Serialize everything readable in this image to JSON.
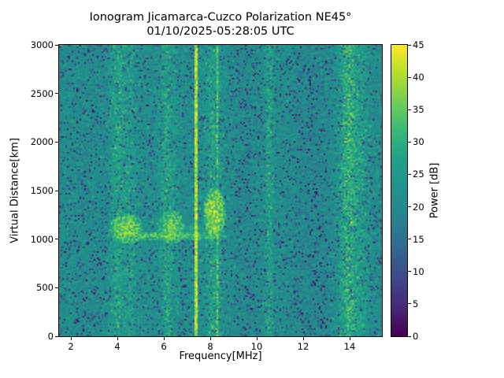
{
  "figure": {
    "background": "#ffffff"
  },
  "chart_data": {
    "type": "heatmap",
    "title": "Ionogram Jicamarca-Cuzco Polarization NE45°",
    "subtitle": "01/10/2025-05:28:05 UTC",
    "xlabel": "Frequency[MHz]",
    "ylabel": "Virtual Distance[km]",
    "xlim": [
      1.49,
      15.39
    ],
    "ylim": [
      0,
      3000
    ],
    "xticks": [
      2,
      4,
      6,
      8,
      10,
      12,
      14
    ],
    "yticks": [
      0,
      500,
      1000,
      1500,
      2000,
      2500,
      3000
    ],
    "grid": false,
    "colorbar": {
      "label": "Power [dB]",
      "min": 0,
      "max": 45,
      "ticks": [
        0,
        5,
        10,
        15,
        20,
        25,
        30,
        35,
        40,
        45
      ],
      "colormap": "viridis"
    },
    "noise": {
      "seed": 1234,
      "base_min": 16.5,
      "base_max": 26.5,
      "dark_speckle_prob": 0.1,
      "dark_min": 2,
      "dark_max": 14,
      "bright_speckle_prob": 0.06,
      "bright_min": 25,
      "bright_max": 31
    },
    "vertical_bands": [
      {
        "c": 4.0,
        "w": 0.3,
        "boost": 6
      },
      {
        "c": 4.55,
        "w": 0.25,
        "boost": 4
      },
      {
        "c": 6.15,
        "w": 0.3,
        "boost": 6
      },
      {
        "c": 8.15,
        "w": 0.35,
        "boost": 6
      },
      {
        "c": 10.55,
        "w": 0.15,
        "boost": 6
      },
      {
        "c": 13.95,
        "w": 0.4,
        "boost": 10
      },
      {
        "c": 14.55,
        "w": 0.25,
        "boost": 4
      },
      {
        "c": 12.4,
        "w": 1.1,
        "boost": -2.5
      },
      {
        "c": 9.5,
        "w": 0.6,
        "boost": -2
      },
      {
        "c": 2.8,
        "w": 0.7,
        "boost": -1.5
      }
    ],
    "rfi_lines": [
      {
        "f": 7.38,
        "w": 0.045,
        "min": 34,
        "max": 45
      },
      {
        "f": 8.32,
        "w": 0.03,
        "min": 24,
        "max": 40
      }
    ],
    "echo_regions": [
      {
        "f": [
          3.6,
          8.75
        ],
        "a": [
          990,
          1075
        ],
        "peak": 41
      },
      {
        "f": [
          3.65,
          5.15
        ],
        "a": [
          950,
          1260
        ],
        "peak": 43
      },
      {
        "f": [
          5.7,
          6.95
        ],
        "a": [
          950,
          1300
        ],
        "peak": 42
      },
      {
        "f": [
          7.7,
          8.65
        ],
        "a": [
          1000,
          1530
        ],
        "peak": 45
      },
      {
        "f": [
          6.8,
          7.8
        ],
        "a": [
          1000,
          1180
        ],
        "peak": 33
      },
      {
        "f": [
          3.85,
          4.45
        ],
        "a": [
          520,
          700
        ],
        "peak": 32
      },
      {
        "f": [
          5.95,
          6.5
        ],
        "a": [
          520,
          700
        ],
        "peak": 29
      }
    ]
  }
}
